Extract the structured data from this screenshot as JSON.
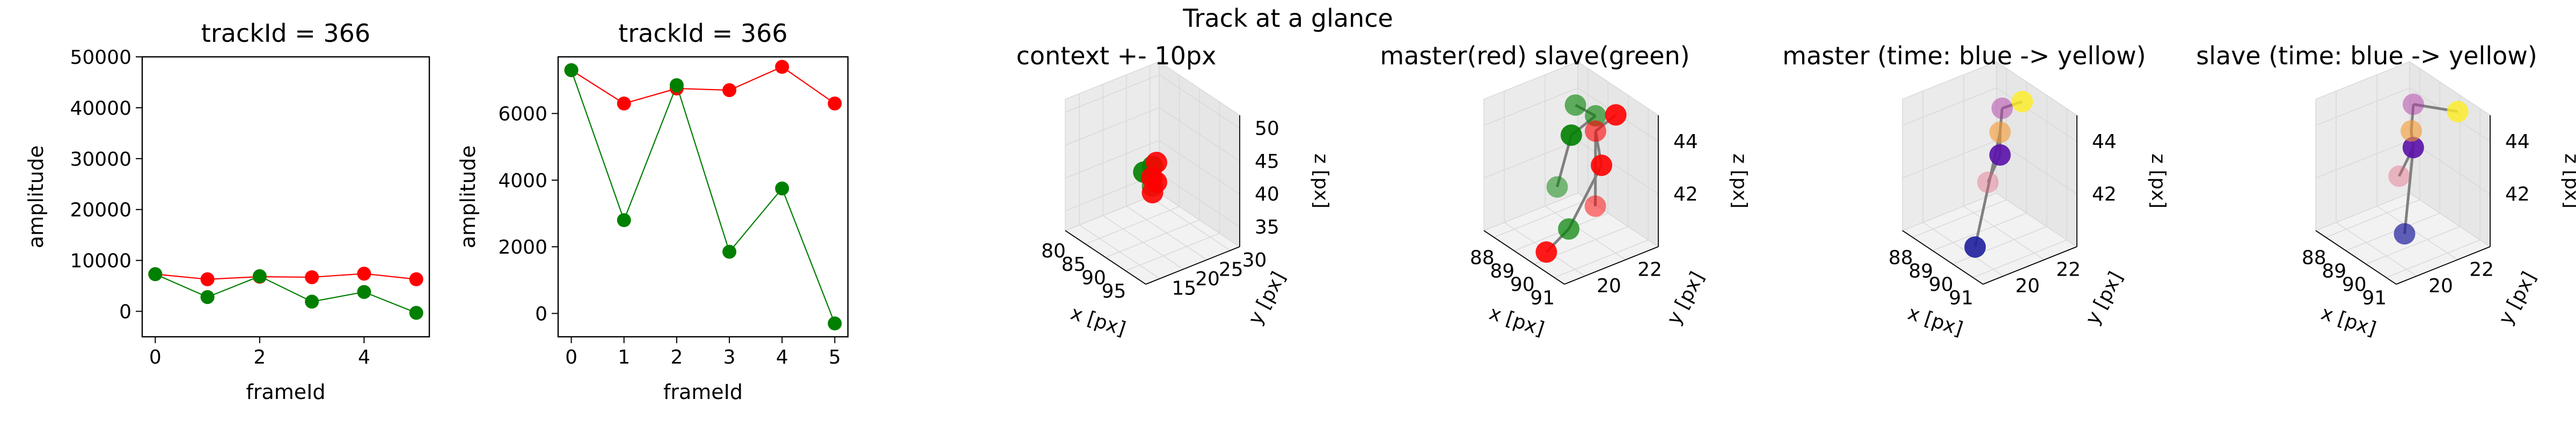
{
  "figure": {
    "title": "Track at a glance"
  },
  "colors": {
    "master": "#ff0000",
    "slave": "#008000",
    "line": "#808080",
    "pane": "#f2f2f2",
    "grid": "#d9d9d9",
    "time_start": "#00008b",
    "time_end": "#ffff40"
  },
  "chart_data": [
    {
      "type": "line",
      "title": "trackId = 366",
      "xlabel": "frameId",
      "ylabel": "amplitude",
      "xlim": [
        -0.25,
        5.25
      ],
      "ylim": [
        -5000,
        50000
      ],
      "x": [
        0,
        1,
        2,
        3,
        4,
        5
      ],
      "xticks": [
        0,
        2,
        4
      ],
      "yticks": [
        0,
        10000,
        20000,
        30000,
        40000,
        50000
      ],
      "series": [
        {
          "color": "#ff0000",
          "values": [
            7300,
            6300,
            6800,
            6700,
            7400,
            6300
          ]
        },
        {
          "color": "#008000",
          "values": [
            7300,
            2800,
            6900,
            1900,
            3800,
            -300
          ]
        }
      ]
    },
    {
      "type": "line",
      "title": "trackId = 366",
      "xlabel": "frameId",
      "ylabel": "amplitude",
      "xlim": [
        -0.25,
        5.25
      ],
      "ylim": [
        -700,
        7700
      ],
      "x": [
        0,
        1,
        2,
        3,
        4,
        5
      ],
      "xticks": [
        0,
        1,
        2,
        3,
        4,
        5
      ],
      "yticks": [
        0,
        2000,
        4000,
        6000
      ],
      "series": [
        {
          "color": "#ff0000",
          "values": [
            7300,
            6300,
            6750,
            6700,
            7400,
            6300
          ]
        },
        {
          "color": "#008000",
          "values": [
            7300,
            2800,
            6850,
            1850,
            3750,
            -300
          ]
        }
      ]
    },
    {
      "type": "scatter3d",
      "title": "context +- 10px",
      "xlabel": "x [px]",
      "ylabel": "y [px]",
      "zlabel": "z [px]",
      "xlim": [
        80,
        100
      ],
      "ylim": [
        12,
        32
      ],
      "zlim": [
        32,
        52
      ],
      "xticks": [
        80,
        85,
        90,
        95
      ],
      "yticks": [
        15,
        20,
        25,
        30
      ],
      "zticks": [
        35,
        40,
        45,
        50
      ],
      "lines": [],
      "points": [
        {
          "x": 90,
          "y": 22,
          "z": 43,
          "color": "#008000",
          "alpha": 0.9
        },
        {
          "x": 89,
          "y": 21,
          "z": 42,
          "color": "#008000",
          "alpha": 0.9
        },
        {
          "x": 90,
          "y": 22,
          "z": 40,
          "color": "#008000",
          "alpha": 0.7
        },
        {
          "x": 91,
          "y": 22,
          "z": 44,
          "color": "#ff0000",
          "alpha": 0.9
        },
        {
          "x": 91,
          "y": 21,
          "z": 42,
          "color": "#ff0000",
          "alpha": 0.9
        },
        {
          "x": 91,
          "y": 22,
          "z": 41,
          "color": "#ff0000",
          "alpha": 0.9
        },
        {
          "x": 90,
          "y": 22,
          "z": 39,
          "color": "#ff0000",
          "alpha": 0.9
        }
      ]
    },
    {
      "type": "scatter3d",
      "title": "master(red) slave(green)",
      "xlabel": "x [px]",
      "ylabel": "y [px]",
      "zlabel": "z [px]",
      "xlim": [
        87.5,
        91.5
      ],
      "ylim": [
        19,
        23.6
      ],
      "zlim": [
        40,
        45
      ],
      "xticks": [
        88,
        89,
        90,
        91
      ],
      "yticks": [
        20,
        22
      ],
      "zticks": [
        42,
        44
      ],
      "lines": [
        {
          "from": [
            88.5,
            22.5,
            44.2
          ],
          "to": [
            89.5,
            22.5,
            44.3
          ],
          "color": "#808080"
        },
        {
          "from": [
            89.5,
            22.5,
            44.3
          ],
          "to": [
            88.6,
            22.2,
            43.2
          ],
          "color": "#808080"
        },
        {
          "from": [
            88.6,
            22.2,
            43.2
          ],
          "to": [
            88.3,
            21.8,
            41.2
          ],
          "color": "#808080"
        },
        {
          "from": [
            90.2,
            22.8,
            44.6
          ],
          "to": [
            89.6,
            22.4,
            43.8
          ],
          "color": "#808080"
        },
        {
          "from": [
            89.6,
            22.4,
            43.8
          ],
          "to": [
            90.2,
            22.1,
            42.9
          ],
          "color": "#808080"
        },
        {
          "from": [
            90.2,
            22.1,
            42.9
          ],
          "to": [
            90.6,
            20.1,
            41.3
          ],
          "color": "#808080"
        },
        {
          "from": [
            90.6,
            20.1,
            41.3
          ],
          "to": [
            90.4,
            19.2,
            40.6
          ],
          "color": "#808080"
        },
        {
          "from": [
            89.6,
            22.4,
            43.8
          ],
          "to": [
            90.4,
            21.6,
            41.6
          ],
          "color": "#808080"
        }
      ],
      "points": [
        {
          "x": 88.5,
          "y": 22.5,
          "z": 44.2,
          "color": "#008000",
          "alpha": 0.6
        },
        {
          "x": 88.6,
          "y": 22.2,
          "z": 43.2,
          "color": "#008000",
          "alpha": 0.9
        },
        {
          "x": 89.5,
          "y": 22.5,
          "z": 44.3,
          "color": "#008000",
          "alpha": 0.6
        },
        {
          "x": 88.3,
          "y": 21.8,
          "z": 41.2,
          "color": "#008000",
          "alpha": 0.5
        },
        {
          "x": 90.6,
          "y": 20.1,
          "z": 41.3,
          "color": "#008000",
          "alpha": 0.7
        },
        {
          "x": 90.2,
          "y": 22.8,
          "z": 44.6,
          "color": "#ff0000",
          "alpha": 0.9
        },
        {
          "x": 89.6,
          "y": 22.4,
          "z": 43.8,
          "color": "#ff0000",
          "alpha": 0.6
        },
        {
          "x": 90.2,
          "y": 22.1,
          "z": 42.9,
          "color": "#ff0000",
          "alpha": 0.9
        },
        {
          "x": 90.4,
          "y": 21.6,
          "z": 41.6,
          "color": "#ff0000",
          "alpha": 0.5
        },
        {
          "x": 90.4,
          "y": 19.2,
          "z": 40.6,
          "color": "#ff0000",
          "alpha": 0.9
        }
      ]
    },
    {
      "type": "scatter3d",
      "title": "master (time: blue -> yellow)",
      "xlabel": "x [px]",
      "ylabel": "y [px]",
      "zlabel": "z [px]",
      "xlim": [
        87.5,
        91.5
      ],
      "ylim": [
        19,
        23.6
      ],
      "zlim": [
        40,
        45
      ],
      "xticks": [
        88,
        89,
        90,
        91
      ],
      "yticks": [
        20,
        22
      ],
      "zticks": [
        42,
        44
      ],
      "lines": [
        {
          "from": [
            88.8,
            22.6,
            44.2
          ],
          "to": [
            89.6,
            22.8,
            44.8
          ],
          "color": "#808080"
        },
        {
          "from": [
            88.8,
            22.6,
            44.2
          ],
          "to": [
            88.9,
            22.4,
            43.4
          ],
          "color": "#808080"
        },
        {
          "from": [
            88.9,
            22.4,
            43.4
          ],
          "to": [
            89.1,
            22.2,
            42.7
          ],
          "color": "#808080"
        },
        {
          "from": [
            89.1,
            22.2,
            42.7
          ],
          "to": [
            88.8,
            21.9,
            41.6
          ],
          "color": "#808080"
        },
        {
          "from": [
            88.9,
            22.4,
            43.4
          ],
          "to": [
            90.6,
            19.5,
            40.8
          ],
          "color": "#808080"
        }
      ],
      "points": [
        {
          "x": 90.6,
          "y": 19.5,
          "z": 40.8,
          "color": "#1f1f9e",
          "alpha": 0.9
        },
        {
          "x": 89.1,
          "y": 22.2,
          "z": 42.7,
          "color": "#5a0fa8",
          "alpha": 0.9
        },
        {
          "x": 88.8,
          "y": 22.6,
          "z": 44.2,
          "color": "#b03ca8",
          "alpha": 0.5
        },
        {
          "x": 88.8,
          "y": 21.9,
          "z": 41.6,
          "color": "#e0607a",
          "alpha": 0.4
        },
        {
          "x": 88.9,
          "y": 22.4,
          "z": 43.4,
          "color": "#f59a30",
          "alpha": 0.6
        },
        {
          "x": 89.6,
          "y": 22.8,
          "z": 44.8,
          "color": "#ffee20",
          "alpha": 0.8
        }
      ]
    },
    {
      "type": "scatter3d",
      "title": "slave (time: blue -> yellow)",
      "xlabel": "x [px]",
      "ylabel": "y [px]",
      "zlabel": "z [px]",
      "xlim": [
        87.5,
        91.5
      ],
      "ylim": [
        19,
        23.6
      ],
      "zlim": [
        40,
        45
      ],
      "xticks": [
        88,
        89,
        90,
        91
      ],
      "yticks": [
        20,
        22
      ],
      "zticks": [
        42,
        44
      ],
      "lines": [
        {
          "from": [
            88.7,
            22.6,
            44.3
          ],
          "to": [
            90.6,
            22.9,
            44.9
          ],
          "color": "#808080"
        },
        {
          "from": [
            88.7,
            22.6,
            44.3
          ],
          "to": [
            88.8,
            22.4,
            43.4
          ],
          "color": "#808080"
        },
        {
          "from": [
            88.8,
            22.4,
            43.4
          ],
          "to": [
            89.0,
            22.3,
            42.9
          ],
          "color": "#808080"
        },
        {
          "from": [
            89.0,
            22.3,
            42.9
          ],
          "to": [
            88.6,
            22.0,
            41.7
          ],
          "color": "#808080"
        },
        {
          "from": [
            89.0,
            22.3,
            42.9
          ],
          "to": [
            90.9,
            20.0,
            41.3
          ],
          "color": "#808080"
        }
      ],
      "points": [
        {
          "x": 90.9,
          "y": 20.0,
          "z": 41.3,
          "color": "#1f1f9e",
          "alpha": 0.7
        },
        {
          "x": 89.0,
          "y": 22.3,
          "z": 42.9,
          "color": "#5a0fa8",
          "alpha": 0.9
        },
        {
          "x": 88.7,
          "y": 22.6,
          "z": 44.3,
          "color": "#b03ca8",
          "alpha": 0.5
        },
        {
          "x": 88.6,
          "y": 22.0,
          "z": 41.7,
          "color": "#e0607a",
          "alpha": 0.4
        },
        {
          "x": 88.8,
          "y": 22.4,
          "z": 43.4,
          "color": "#f59a30",
          "alpha": 0.6
        },
        {
          "x": 90.6,
          "y": 22.9,
          "z": 44.9,
          "color": "#ffee20",
          "alpha": 0.8
        }
      ]
    }
  ]
}
